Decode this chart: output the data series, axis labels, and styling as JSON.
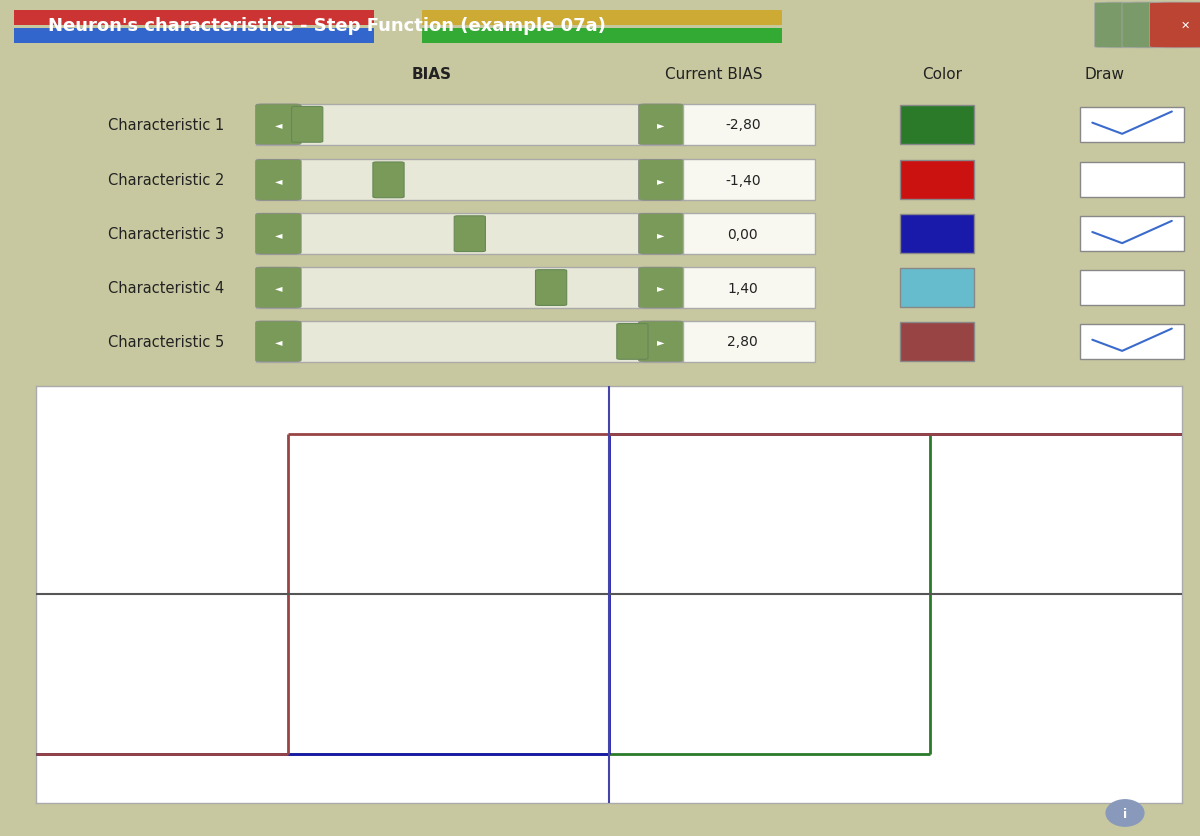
{
  "title": "Neuron's characteristics - Step Function (example 07a)",
  "bg_color": "#c8c8a0",
  "window_bg": "#d0d0a8",
  "titlebar_color": "#8aaa6a",
  "characteristics": [
    {
      "name": "Characteristic 1",
      "bias": -2.8,
      "color": "#2a7a2a",
      "draw": true
    },
    {
      "name": "Characteristic 2",
      "bias": -1.4,
      "color": "#cc1111",
      "draw": false
    },
    {
      "name": "Characteristic 3",
      "bias": 0.0,
      "color": "#1a1aaa",
      "draw": true
    },
    {
      "name": "Characteristic 4",
      "bias": 1.4,
      "color": "#66bbcc",
      "draw": false
    },
    {
      "name": "Characteristic 5",
      "bias": 2.8,
      "color": "#994444",
      "draw": true
    }
  ],
  "x_range": [
    -5,
    5
  ],
  "y_range": [
    -0.15,
    1.15
  ],
  "plot_bg": "#ffffff",
  "axis_color": "#666666",
  "vert_axis_color": "#4444aa",
  "slider_track_color": "#e8e8d8",
  "slider_handle_color": "#7a9a5a",
  "input_bg": "#f8f8f0",
  "checkbox_check_color": "#3a6acc",
  "border_color": "#aaaaaa"
}
